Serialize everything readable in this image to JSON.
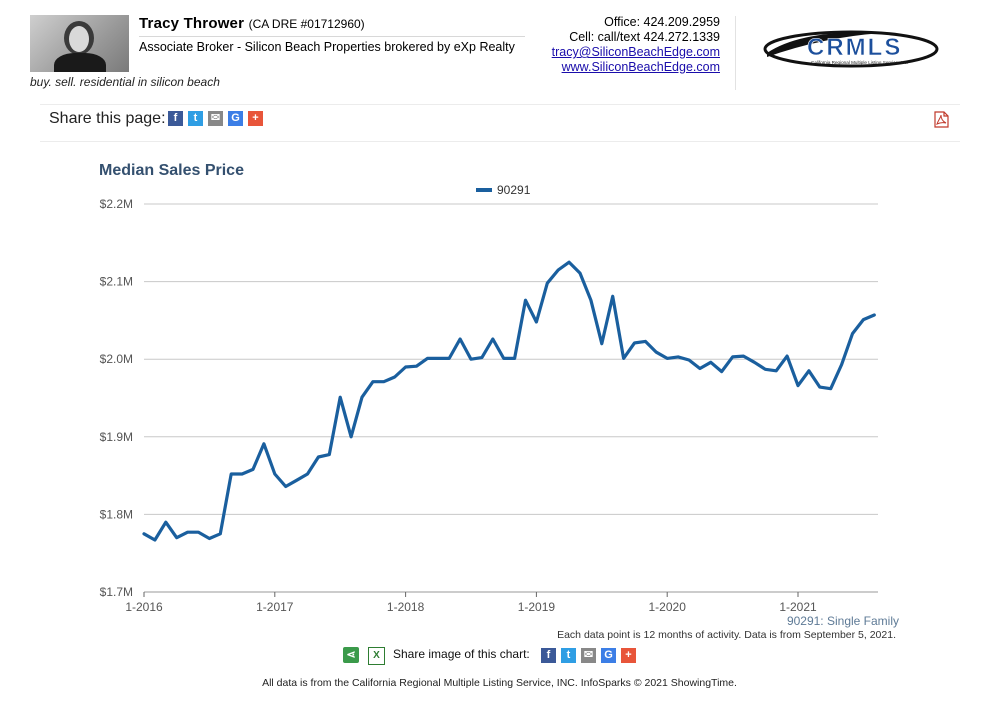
{
  "agent": {
    "name": "Tracy Thrower",
    "license": "(CA DRE #01712960)",
    "title": "Associate Broker - Silicon Beach Properties brokered by eXp Realty",
    "tagline": "buy. sell. residential in silicon beach"
  },
  "contact": {
    "office": "Office: 424.209.2959",
    "cell": "Cell: call/text 424.272.1339",
    "email": "tracy@SiliconBeachEdge.com",
    "website": "www.SiliconBeachEdge.com"
  },
  "logo": {
    "text": "CRMLS",
    "subtext": "California Regional Multiple Listing Service, Inc."
  },
  "share": {
    "label": "Share this page:",
    "buttons": [
      {
        "icon": "facebook-icon",
        "glyph": "f",
        "color": "#3b5998"
      },
      {
        "icon": "twitter-icon",
        "glyph": "t",
        "color": "#2f9ee4"
      },
      {
        "icon": "email-icon",
        "glyph": "✉",
        "color": "#888888"
      },
      {
        "icon": "google-icon",
        "glyph": "G",
        "color": "#3c7ee6"
      },
      {
        "icon": "plus-icon",
        "glyph": "+",
        "color": "#e8553a"
      }
    ]
  },
  "chart_data": {
    "type": "line",
    "title": "Median Sales Price",
    "series": [
      {
        "name": "90291",
        "color": "#1a5f9e",
        "values": [
          1.775,
          1.767,
          1.79,
          1.77,
          1.777,
          1.777,
          1.769,
          1.775,
          1.852,
          1.852,
          1.858,
          1.891,
          1.852,
          1.836,
          1.844,
          1.852,
          1.874,
          1.877,
          1.951,
          1.9,
          1.951,
          1.971,
          1.971,
          1.977,
          1.99,
          1.991,
          2.001,
          2.001,
          2.001,
          2.026,
          2.0,
          2.002,
          2.026,
          2.001,
          2.001,
          2.076,
          2.048,
          2.098,
          2.115,
          2.125,
          2.111,
          2.076,
          2.02,
          2.081,
          2.001,
          2.021,
          2.023,
          2.009,
          2.001,
          2.003,
          1.999,
          1.988,
          1.996,
          1.984,
          2.003,
          2.004,
          1.996,
          1.987,
          1.985,
          2.004,
          1.966,
          1.985,
          1.964,
          1.962,
          1.993,
          2.033,
          2.051,
          2.057
        ]
      }
    ],
    "x_start": "1-2016",
    "x_ticks": [
      "1-2016",
      "1-2017",
      "1-2018",
      "1-2019",
      "1-2020",
      "1-2021"
    ],
    "y_ticks": [
      "$1.7M",
      "$1.8M",
      "$1.9M",
      "$2.0M",
      "$2.1M",
      "$2.2M"
    ],
    "ylim": [
      1.7,
      2.2
    ],
    "unit": "$M",
    "grid": true,
    "legend_position": "top-center"
  },
  "notes": {
    "series": "90291: Single Family",
    "data": "Each data point is 12 months of activity. Data is from September 5, 2021."
  },
  "share_chart": {
    "label": "Share image of this chart:"
  },
  "footer": {
    "text": "All data is from the California Regional Multiple Listing Service, INC. InfoSparks © 2021 ShowingTime."
  }
}
